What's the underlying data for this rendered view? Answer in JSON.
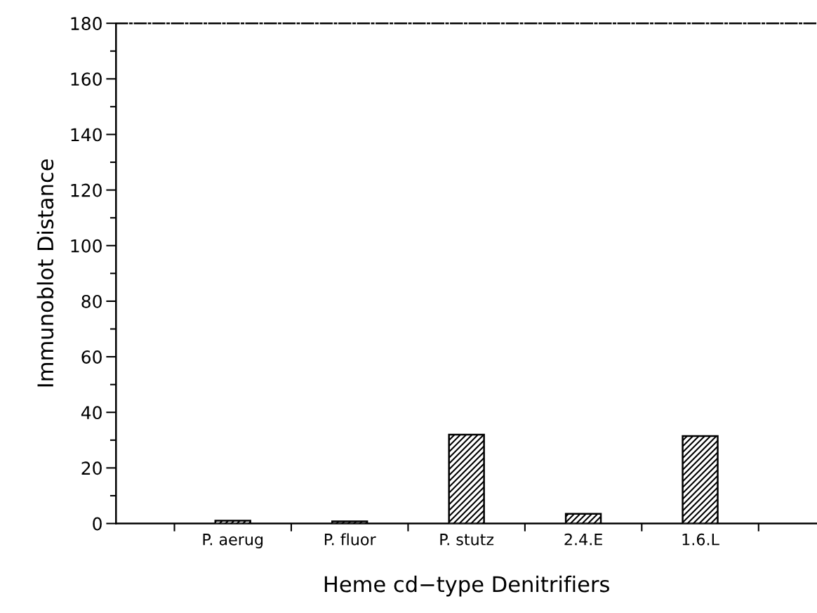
{
  "chart_data": {
    "type": "bar",
    "xlabel": "Heme cd−type Denitrifiers",
    "ylabel": "Immunoblot Distance",
    "categories": [
      "P. aerug",
      "P. fluor",
      "P. stutz",
      "2.4.E",
      "1.6.L"
    ],
    "values": [
      1,
      0.8,
      32,
      3.5,
      31.5
    ],
    "color": "#000000",
    "ylim": [
      0,
      180
    ],
    "yticks": [
      0,
      20,
      40,
      60,
      80,
      100,
      120,
      140,
      160,
      180
    ],
    "grid": false
  }
}
